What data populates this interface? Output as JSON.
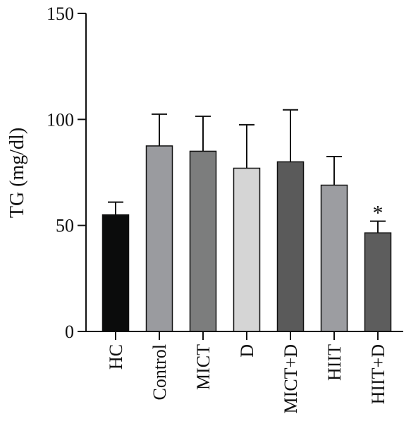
{
  "chart_data": {
    "type": "bar",
    "ylabel": "TG (mg/dl)",
    "xlabel": "",
    "ylim": [
      0,
      150
    ],
    "yticks": [
      0,
      50,
      100,
      150
    ],
    "grid": false,
    "categories": [
      "HC",
      "Control",
      "MICT",
      "D",
      "MICT+D",
      "HIIT",
      "HIIT+D"
    ],
    "values": [
      55,
      87.5,
      85,
      77,
      80,
      69,
      46.5
    ],
    "error_upper": [
      6,
      15,
      16.5,
      20.5,
      24.5,
      13.5,
      5.5
    ],
    "colors": [
      "#0b0c0c",
      "#9a9b9f",
      "#7c7d7d",
      "#d5d5d5",
      "#5a5a5a",
      "#9c9da1",
      "#5d5d5d"
    ],
    "annotations": [
      {
        "category": "HIIT+D",
        "text": "*"
      }
    ]
  }
}
